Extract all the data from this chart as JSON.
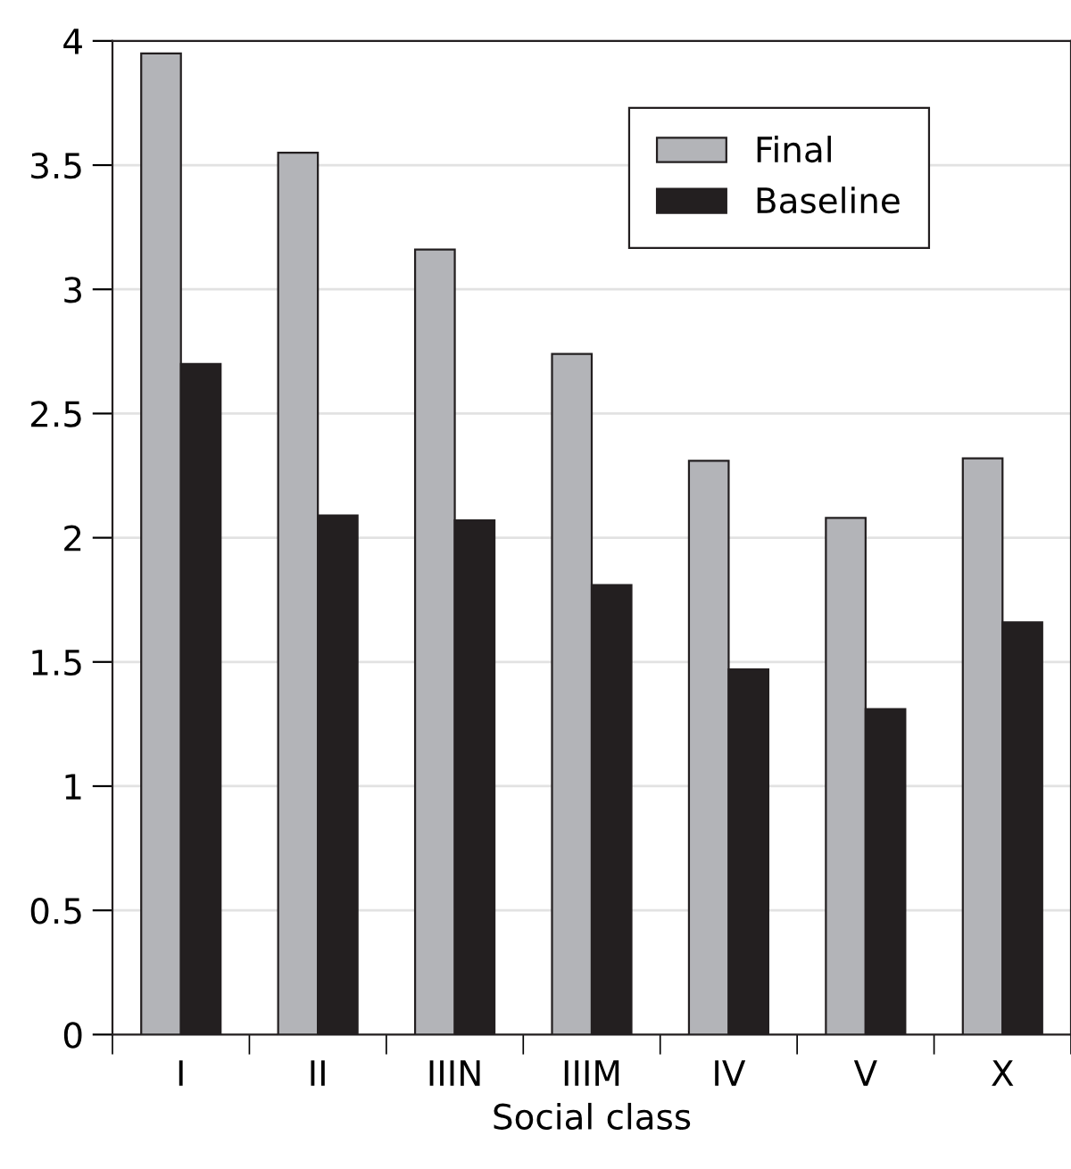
{
  "chart_data": {
    "type": "bar",
    "xlabel": "Social class",
    "categories": [
      "I",
      "II",
      "IIIN",
      "IIIM",
      "IV",
      "V",
      "X"
    ],
    "series": [
      {
        "name": "Final",
        "color": "#b3b4b8",
        "values": [
          3.95,
          3.55,
          3.16,
          2.74,
          2.31,
          2.08,
          2.32
        ]
      },
      {
        "name": "Baseline",
        "color": "#231f20",
        "values": [
          2.7,
          2.09,
          2.07,
          1.81,
          1.47,
          1.31,
          1.66
        ]
      }
    ],
    "ylim": [
      0,
      4
    ],
    "yticks": [
      0,
      0.5,
      1,
      1.5,
      2,
      2.5,
      3,
      3.5,
      4
    ],
    "grid": "y",
    "legend": "top right"
  }
}
